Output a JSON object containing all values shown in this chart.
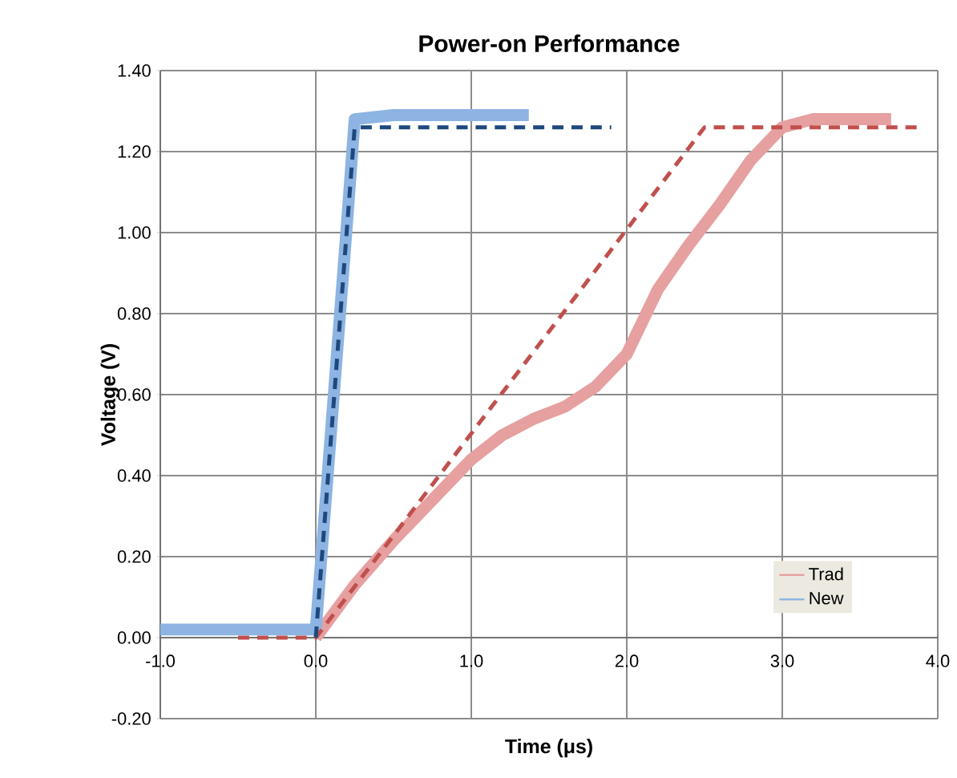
{
  "chart_data": {
    "type": "line",
    "title": "Power-on Performance",
    "xlabel": "Time (μs)",
    "ylabel": "Voltage (V)",
    "xlim": [
      -1,
      4
    ],
    "ylim": [
      -0.2,
      1.4
    ],
    "xticks": [
      {
        "value": -1,
        "label": "-1.0"
      },
      {
        "value": 0,
        "label": "0.0"
      },
      {
        "value": 1,
        "label": "1.0"
      },
      {
        "value": 2,
        "label": "2.0"
      },
      {
        "value": 3,
        "label": "3.0"
      },
      {
        "value": 4,
        "label": "4.0"
      }
    ],
    "yticks": [
      {
        "value": -0.2,
        "label": "-0.20"
      },
      {
        "value": 0,
        "label": "0.00"
      },
      {
        "value": 0.2,
        "label": "0.20"
      },
      {
        "value": 0.4,
        "label": "0.40"
      },
      {
        "value": 0.6,
        "label": "0.60"
      },
      {
        "value": 0.8,
        "label": "0.80"
      },
      {
        "value": 1.0,
        "label": "1.00"
      },
      {
        "value": 1.2,
        "label": "1.20"
      },
      {
        "value": 1.4,
        "label": "1.40"
      }
    ],
    "grid": true,
    "legend": "bottom right",
    "marker": "none",
    "series": [
      {
        "name": "Trad",
        "color": "#e6a0a0",
        "line_style": "solid",
        "x": [
          0,
          0.25,
          0.5,
          0.75,
          1.0,
          1.2,
          1.4,
          1.6,
          1.8,
          2.0,
          2.2,
          2.4,
          2.6,
          2.8,
          3.0,
          3.2,
          3.4,
          3.7
        ],
        "values": [
          0,
          0.13,
          0.24,
          0.34,
          0.44,
          0.5,
          0.54,
          0.57,
          0.62,
          0.7,
          0.86,
          0.97,
          1.07,
          1.18,
          1.26,
          1.28,
          1.28,
          1.28
        ]
      },
      {
        "name": "New",
        "color": "#8db4e2",
        "line_style": "solid",
        "x": [
          -1,
          -0.5,
          0,
          0.05,
          0.1,
          0.15,
          0.2,
          0.25,
          0.5,
          1.0,
          1.37
        ],
        "values": [
          0.02,
          0.02,
          0.02,
          0.27,
          0.52,
          0.77,
          1.02,
          1.28,
          1.29,
          1.29,
          1.29
        ]
      },
      {
        "color": "#c0504d",
        "line_style": "dashed",
        "x": [
          -0.5,
          0,
          2.5,
          3.9
        ],
        "values": [
          0,
          0,
          1.26,
          1.26
        ]
      },
      {
        "color": "#1f497d",
        "line_style": "dashed",
        "x": [
          0,
          0.25,
          1.9
        ],
        "values": [
          0,
          1.26,
          1.26
        ]
      }
    ]
  }
}
